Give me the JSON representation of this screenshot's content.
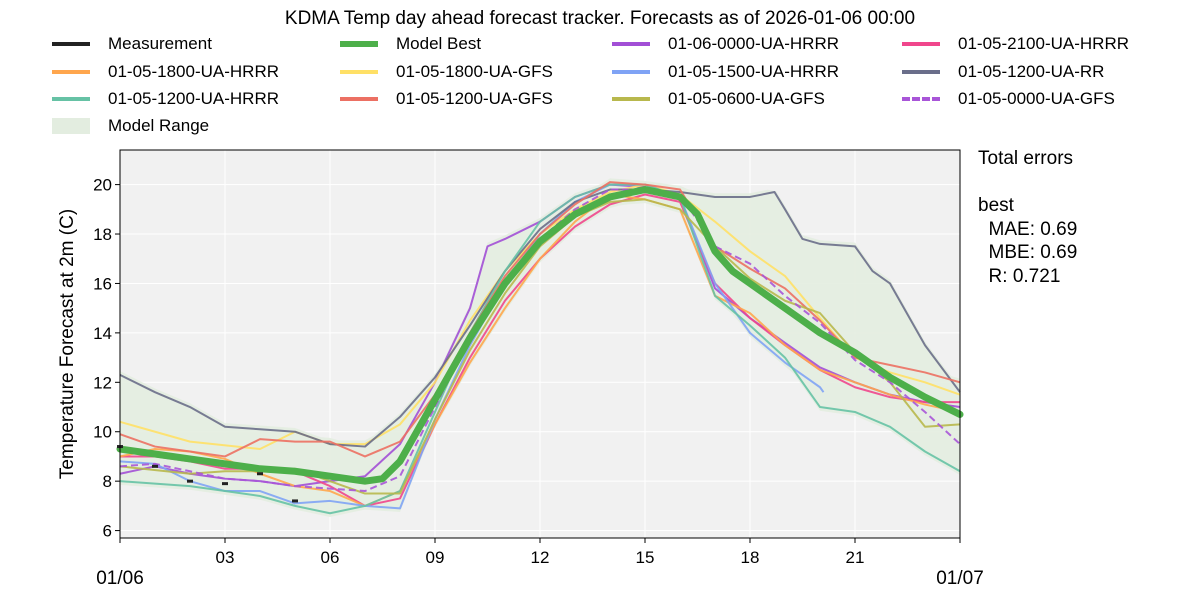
{
  "chart_data": {
    "type": "line",
    "title": "KDMA Temp day ahead forecast tracker. Forecasts as of 2026-01-06 00:00",
    "xlabel": "",
    "ylabel": "Temperature Forecast at 2m (C)",
    "xlim": [
      0,
      24
    ],
    "ylim": [
      5.7,
      21.4
    ],
    "x_unit": "hours after 01/06 00:00",
    "x_ticks": [
      0,
      3,
      6,
      9,
      12,
      15,
      18,
      21,
      24
    ],
    "x_tick_labels": [
      "",
      "03",
      "06",
      "09",
      "12",
      "15",
      "18",
      "21",
      ""
    ],
    "x_date_labels": [
      "01/06",
      "01/07"
    ],
    "y_ticks": [
      6,
      8,
      10,
      12,
      14,
      16,
      18,
      20
    ],
    "grid": true,
    "legend_placement": "top",
    "measurement": {
      "name": "Measurement",
      "color": "#222222",
      "x": [
        0,
        1,
        2,
        3,
        4,
        5
      ],
      "y": [
        9.4,
        8.6,
        8.0,
        7.9,
        8.3,
        7.2
      ]
    },
    "model_best": {
      "name": "Model Best",
      "color": "#4daf4a",
      "x": [
        0,
        1,
        2,
        3,
        4,
        5,
        6,
        7,
        7.5,
        8,
        9,
        10,
        11,
        12,
        13,
        14,
        15,
        16,
        16.5,
        17,
        17.5,
        18,
        19,
        20,
        21,
        22,
        23,
        24
      ],
      "y": [
        9.3,
        9.1,
        8.9,
        8.7,
        8.5,
        8.4,
        8.2,
        8.0,
        8.1,
        8.8,
        11.3,
        13.8,
        16.0,
        17.7,
        18.8,
        19.5,
        19.8,
        19.5,
        18.8,
        17.3,
        16.5,
        16.0,
        15.0,
        14.0,
        13.2,
        12.2,
        11.4,
        10.7
      ]
    },
    "model_range": {
      "name": "Model Range",
      "color": "#e3ede0"
    },
    "series": [
      {
        "name": "01-06-0000-UA-HRRR",
        "color": "#a24fd6",
        "dashed": false,
        "x": [
          0,
          1,
          2,
          3,
          4,
          5,
          6,
          7,
          8,
          9,
          10,
          10.5,
          11,
          12,
          13,
          14,
          15,
          16,
          17,
          18,
          19,
          20,
          21,
          22,
          23,
          24
        ],
        "y": [
          8.3,
          8.6,
          8.3,
          8.1,
          8.0,
          7.8,
          8.0,
          8.2,
          9.5,
          12.0,
          15.0,
          17.5,
          17.8,
          18.5,
          19.5,
          20.0,
          19.9,
          19.5,
          15.8,
          14.6,
          13.6,
          12.6,
          12.0,
          11.5,
          11.2,
          11.0
        ]
      },
      {
        "name": "01-05-2100-UA-HRRR",
        "color": "#f0468c",
        "dashed": false,
        "x": [
          0,
          1,
          2,
          3,
          4,
          5,
          6,
          7,
          8,
          9,
          10,
          11,
          12,
          13,
          14,
          15,
          16,
          17,
          18,
          19,
          20,
          21,
          22,
          23,
          24
        ],
        "y": [
          9.0,
          9.0,
          8.8,
          8.5,
          8.5,
          8.4,
          7.8,
          7.0,
          7.3,
          10.3,
          13.0,
          15.3,
          17.0,
          18.3,
          19.2,
          19.6,
          19.3,
          16.0,
          14.6,
          13.5,
          12.5,
          11.8,
          11.4,
          11.2,
          11.2
        ]
      },
      {
        "name": "01-05-1800-UA-HRRR",
        "color": "#ffa64d",
        "dashed": false,
        "x": [
          0,
          1,
          2,
          3,
          4,
          5,
          6,
          7,
          8,
          9,
          10,
          11,
          12,
          13,
          14,
          15,
          16,
          17,
          18,
          19,
          20,
          21,
          22,
          23,
          24
        ],
        "y": [
          9.0,
          9.3,
          9.2,
          8.9,
          8.3,
          7.8,
          7.6,
          7.0,
          7.6,
          10.3,
          12.8,
          15.0,
          17.0,
          18.5,
          19.6,
          19.4,
          19.0,
          15.5,
          14.8,
          13.5,
          12.5,
          12.0,
          11.5,
          11.1,
          10.8
        ]
      },
      {
        "name": "01-05-1800-UA-GFS",
        "color": "#ffe066",
        "dashed": false,
        "x": [
          0,
          2,
          4,
          5,
          6,
          7,
          8,
          9,
          10,
          11,
          12,
          13,
          14,
          15,
          16,
          17,
          18,
          19,
          20,
          21,
          22,
          23,
          24
        ],
        "y": [
          10.4,
          9.6,
          9.3,
          10.0,
          9.5,
          9.5,
          10.3,
          12.0,
          14.5,
          16.5,
          18.0,
          19.0,
          19.7,
          20.0,
          19.6,
          18.5,
          17.3,
          16.3,
          14.6,
          13.0,
          12.4,
          12.0,
          11.5
        ]
      },
      {
        "name": "01-05-1500-UA-HRRR",
        "color": "#7fa3f5",
        "dashed": false,
        "x": [
          0,
          1,
          2,
          3,
          4,
          5,
          6,
          7,
          8,
          9,
          10,
          11,
          12,
          13,
          14,
          15,
          16,
          17,
          18,
          19,
          20,
          20.1
        ],
        "y": [
          8.8,
          8.7,
          8.0,
          7.6,
          7.6,
          7.1,
          7.2,
          7.0,
          6.9,
          10.5,
          13.5,
          16.0,
          18.0,
          19.3,
          20.0,
          20.0,
          19.5,
          16.0,
          14.0,
          12.8,
          11.8,
          11.6
        ]
      },
      {
        "name": "01-05-1200-UA-RR",
        "color": "#6a6e8a",
        "dashed": false,
        "x": [
          0,
          1,
          2,
          3,
          4,
          5,
          6,
          7,
          8,
          9,
          10,
          11,
          12,
          13,
          14,
          15,
          16,
          17,
          18,
          18.7,
          19,
          19.5,
          20,
          21,
          21.5,
          22,
          23,
          24
        ],
        "y": [
          12.3,
          11.6,
          11.0,
          10.2,
          10.1,
          10.0,
          9.5,
          9.4,
          10.6,
          12.2,
          14.3,
          16.5,
          18.2,
          19.3,
          19.8,
          19.8,
          19.7,
          19.5,
          19.5,
          19.7,
          19.0,
          17.8,
          17.6,
          17.5,
          16.5,
          16.0,
          13.5,
          11.6
        ]
      },
      {
        "name": "01-05-1200-UA-HRRR",
        "color": "#66c2a5",
        "dashed": false,
        "x": [
          0,
          1,
          2,
          3,
          4,
          5,
          6,
          7,
          8,
          9,
          10,
          11,
          12,
          13,
          14,
          15,
          16,
          17,
          18,
          19,
          20,
          21,
          22,
          23,
          24
        ],
        "y": [
          8.0,
          7.9,
          7.8,
          7.6,
          7.4,
          7.0,
          6.7,
          7.0,
          7.6,
          10.8,
          14.0,
          16.5,
          18.5,
          19.5,
          20.0,
          20.0,
          19.5,
          15.5,
          14.3,
          13.0,
          11.0,
          10.8,
          10.2,
          9.2,
          8.4
        ]
      },
      {
        "name": "01-05-1200-UA-GFS",
        "color": "#ec7063",
        "dashed": false,
        "x": [
          0,
          1,
          2,
          3,
          4,
          5,
          6,
          7,
          8,
          9,
          10,
          11,
          12,
          13,
          14,
          15,
          16,
          17,
          18,
          19,
          20,
          21,
          22,
          23,
          24
        ],
        "y": [
          9.9,
          9.4,
          9.2,
          9.0,
          9.7,
          9.6,
          9.6,
          9.0,
          9.6,
          11.5,
          14.0,
          16.3,
          18.0,
          19.2,
          20.1,
          20.0,
          19.8,
          17.5,
          16.6,
          15.8,
          14.5,
          13.0,
          12.7,
          12.4,
          12.0
        ]
      },
      {
        "name": "01-05-0600-UA-GFS",
        "color": "#b8b84d",
        "dashed": false,
        "x": [
          0,
          2,
          3,
          4,
          5,
          6,
          7,
          8,
          9,
          10,
          11,
          12,
          13,
          14,
          15,
          16,
          17,
          18,
          19,
          20,
          21,
          22,
          23,
          24
        ],
        "y": [
          8.6,
          8.3,
          8.4,
          8.4,
          8.5,
          8.0,
          7.5,
          7.5,
          10.5,
          13.3,
          15.6,
          17.5,
          18.7,
          19.3,
          19.4,
          19.0,
          17.5,
          16.2,
          15.3,
          14.8,
          13.2,
          12.0,
          10.2,
          10.3
        ]
      },
      {
        "name": "01-05-0000-UA-GFS",
        "color": "#a855d8",
        "dashed": true,
        "x": [
          0,
          1,
          2,
          3,
          4,
          5,
          6,
          7,
          8,
          9,
          10,
          11,
          12,
          13,
          14,
          15,
          16,
          17,
          18,
          19,
          20,
          21,
          22,
          23,
          24
        ],
        "y": [
          8.6,
          8.7,
          8.4,
          8.1,
          8.0,
          7.8,
          7.7,
          7.6,
          8.2,
          11.0,
          13.8,
          16.0,
          17.8,
          19.0,
          19.8,
          19.8,
          19.6,
          17.5,
          16.8,
          15.5,
          14.4,
          12.9,
          12.0,
          10.8,
          9.5
        ]
      }
    ],
    "legend_order": [
      "Measurement",
      "Model Best",
      "01-06-0000-UA-HRRR",
      "01-05-2100-UA-HRRR",
      "01-05-1800-UA-HRRR",
      "01-05-1800-UA-GFS",
      "01-05-1500-UA-HRRR",
      "01-05-1200-UA-RR",
      "01-05-1200-UA-HRRR",
      "01-05-1200-UA-GFS",
      "01-05-0600-UA-GFS",
      "01-05-0000-UA-GFS",
      "Model Range"
    ]
  },
  "errors": {
    "heading": "Total errors",
    "model": "best",
    "mae": "  MAE: 0.69",
    "mbe": "  MBE: 0.69",
    "r": "  R: 0.721"
  }
}
